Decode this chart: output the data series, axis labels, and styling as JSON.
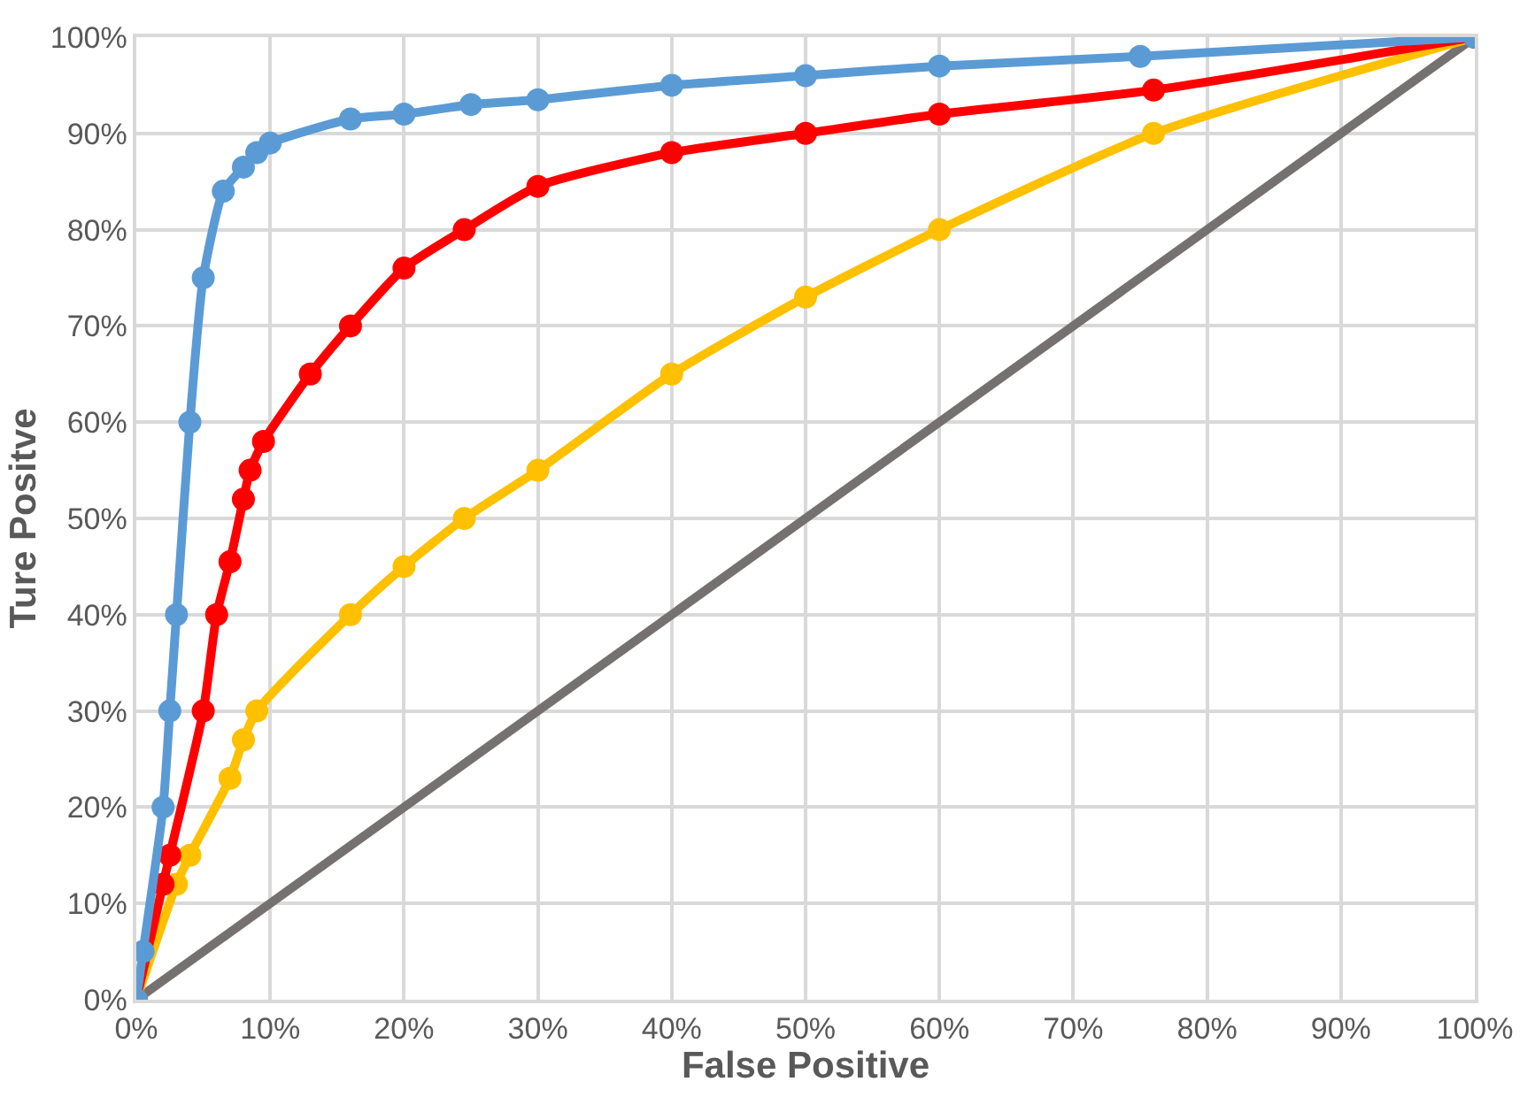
{
  "chart_data": {
    "type": "line",
    "xlabel": "False Positive",
    "ylabel": "Ture Positve",
    "xlim": [
      0,
      100
    ],
    "ylim": [
      0,
      100
    ],
    "xticks": [
      {
        "value": 0,
        "label": "0%"
      },
      {
        "value": 10,
        "label": "10%"
      },
      {
        "value": 20,
        "label": "20%"
      },
      {
        "value": 30,
        "label": "30%"
      },
      {
        "value": 40,
        "label": "40%"
      },
      {
        "value": 50,
        "label": "50%"
      },
      {
        "value": 60,
        "label": "60%"
      },
      {
        "value": 70,
        "label": "70%"
      },
      {
        "value": 80,
        "label": "80%"
      },
      {
        "value": 90,
        "label": "90%"
      },
      {
        "value": 100,
        "label": "100%"
      }
    ],
    "yticks": [
      {
        "value": 0,
        "label": "0%"
      },
      {
        "value": 10,
        "label": "10%"
      },
      {
        "value": 20,
        "label": "20%"
      },
      {
        "value": 30,
        "label": "30%"
      },
      {
        "value": 40,
        "label": "40%"
      },
      {
        "value": 50,
        "label": "50%"
      },
      {
        "value": 60,
        "label": "60%"
      },
      {
        "value": 70,
        "label": "70%"
      },
      {
        "value": 80,
        "label": "80%"
      },
      {
        "value": 90,
        "label": "90%"
      },
      {
        "value": 100,
        "label": "100%"
      }
    ],
    "grid": true,
    "line_style": "solid",
    "series": [
      {
        "color": "#767171",
        "marker": "none",
        "x": [
          0,
          100
        ],
        "values": [
          0,
          100
        ]
      },
      {
        "color": "#ffc000",
        "marker": "circle",
        "x": [
          0,
          3,
          4,
          7,
          8,
          9,
          16,
          20,
          24.5,
          30,
          40,
          50,
          60,
          76,
          100
        ],
        "values": [
          0,
          12,
          15,
          23,
          27,
          30,
          40,
          45,
          50,
          55,
          65,
          73,
          80,
          90,
          100
        ]
      },
      {
        "color": "#ff0000",
        "marker": "circle",
        "x": [
          0,
          2,
          2.5,
          5,
          6,
          7,
          8,
          8.5,
          9.5,
          13,
          16,
          20,
          24.5,
          30,
          40,
          50,
          60,
          76,
          100
        ],
        "values": [
          0,
          12,
          15,
          30,
          40,
          45.5,
          52,
          55,
          58,
          65,
          70,
          76,
          80,
          84.5,
          88,
          90,
          92,
          94.5,
          100
        ]
      },
      {
        "color": "#5b9bd5",
        "marker": "circle",
        "x": [
          0,
          0.5,
          2,
          2.5,
          3,
          4,
          5,
          6.5,
          8,
          9,
          10,
          16,
          20,
          25,
          30,
          40,
          50,
          60,
          75,
          100
        ],
        "values": [
          0,
          5,
          20,
          30,
          40,
          60,
          75,
          84,
          86.5,
          88,
          89,
          91.5,
          92,
          93,
          93.5,
          95,
          96,
          97,
          98,
          100
        ]
      }
    ]
  }
}
